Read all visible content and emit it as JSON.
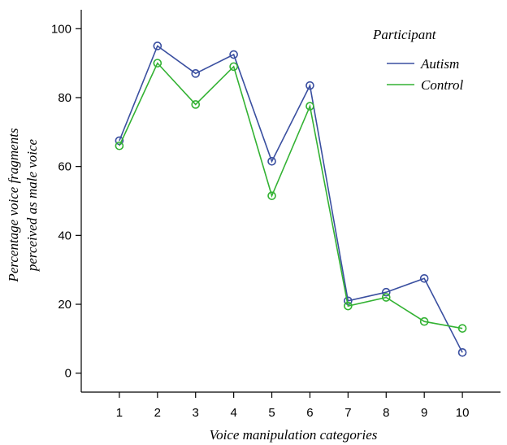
{
  "chart_data": {
    "type": "line",
    "title": "",
    "xlabel": "Voice manipulation categories",
    "ylabel_lines": [
      "Percentage voice fragments",
      "perceived as male voice"
    ],
    "x": [
      1,
      2,
      3,
      4,
      5,
      6,
      7,
      8,
      9,
      10
    ],
    "x_tick_labels": [
      "1",
      "2",
      "3",
      "4",
      "5",
      "6",
      "7",
      "8",
      "9",
      "10"
    ],
    "y_ticks": [
      0,
      20,
      40,
      60,
      80,
      100
    ],
    "y_tick_labels": [
      "0",
      "20",
      "40",
      "60",
      "80",
      "100"
    ],
    "xlim": [
      0,
      11
    ],
    "ylim": [
      -5.5,
      105.5
    ],
    "grid": false,
    "legend": {
      "title": "Participant",
      "position": "top-right"
    },
    "series": [
      {
        "name": "Autism",
        "color": "#3a4fa0",
        "values": [
          67.5,
          95,
          87,
          92.5,
          61.5,
          83.5,
          21,
          23.5,
          27.5,
          6
        ]
      },
      {
        "name": "Control",
        "color": "#33b233",
        "values": [
          66,
          90,
          78,
          89,
          51.5,
          77.5,
          19.5,
          22,
          15,
          13
        ]
      }
    ]
  }
}
